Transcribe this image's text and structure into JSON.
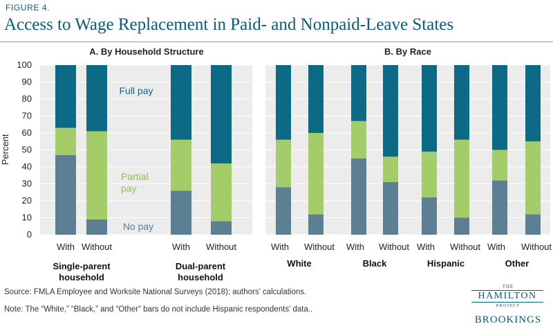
{
  "figure_label": "FIGURE 4.",
  "title": "Access to Wage Replacement in Paid- and Nonpaid-Leave States",
  "source": "Source:  FMLA Employee and Worksite National Surveys (2018); authors’ calculations.",
  "note": "Note: The “White,” “Black,” and “Other” bars do not include Hispanic respondents’ data..",
  "logo": {
    "the": "THE",
    "hamilton": "HAMILTON",
    "project": "PROJECT",
    "brookings": "BROOKINGS"
  },
  "colors": {
    "no_pay": "#5c7f94",
    "partial_pay": "#a4cd6a",
    "full_pay": "#0d6a87",
    "text_blue": "#0b5a78"
  },
  "chart_data": [
    {
      "type": "bar",
      "stacked": true,
      "title": "A. By Household Structure",
      "ylabel": "Percent",
      "ylim": [
        0,
        100
      ],
      "yticks": [
        0,
        10,
        20,
        30,
        40,
        50,
        60,
        70,
        80,
        90,
        100
      ],
      "categories": [
        "With",
        "Without",
        "With",
        "Without"
      ],
      "groups": [
        "Single-parent household",
        "Dual-parent household"
      ],
      "series": [
        {
          "name": "No pay",
          "values": [
            47,
            9,
            26,
            8
          ]
        },
        {
          "name": "Partial pay",
          "values": [
            16,
            52,
            30,
            34
          ]
        },
        {
          "name": "Full pay",
          "values": [
            37,
            39,
            44,
            58
          ]
        }
      ]
    },
    {
      "type": "bar",
      "stacked": true,
      "title": "B. By Race",
      "ylim": [
        0,
        100
      ],
      "categories": [
        "With",
        "Without",
        "With",
        "Without",
        "With",
        "Without",
        "With",
        "Without"
      ],
      "groups": [
        "White",
        "Black",
        "Hispanic",
        "Other"
      ],
      "series": [
        {
          "values": [
            28,
            12,
            45,
            31,
            22,
            10,
            32,
            12
          ]
        },
        {
          "values": [
            28,
            48,
            22,
            15,
            27,
            46,
            18,
            43
          ]
        },
        {
          "values": [
            44,
            40,
            33,
            54,
            51,
            44,
            50,
            45
          ]
        }
      ]
    }
  ]
}
